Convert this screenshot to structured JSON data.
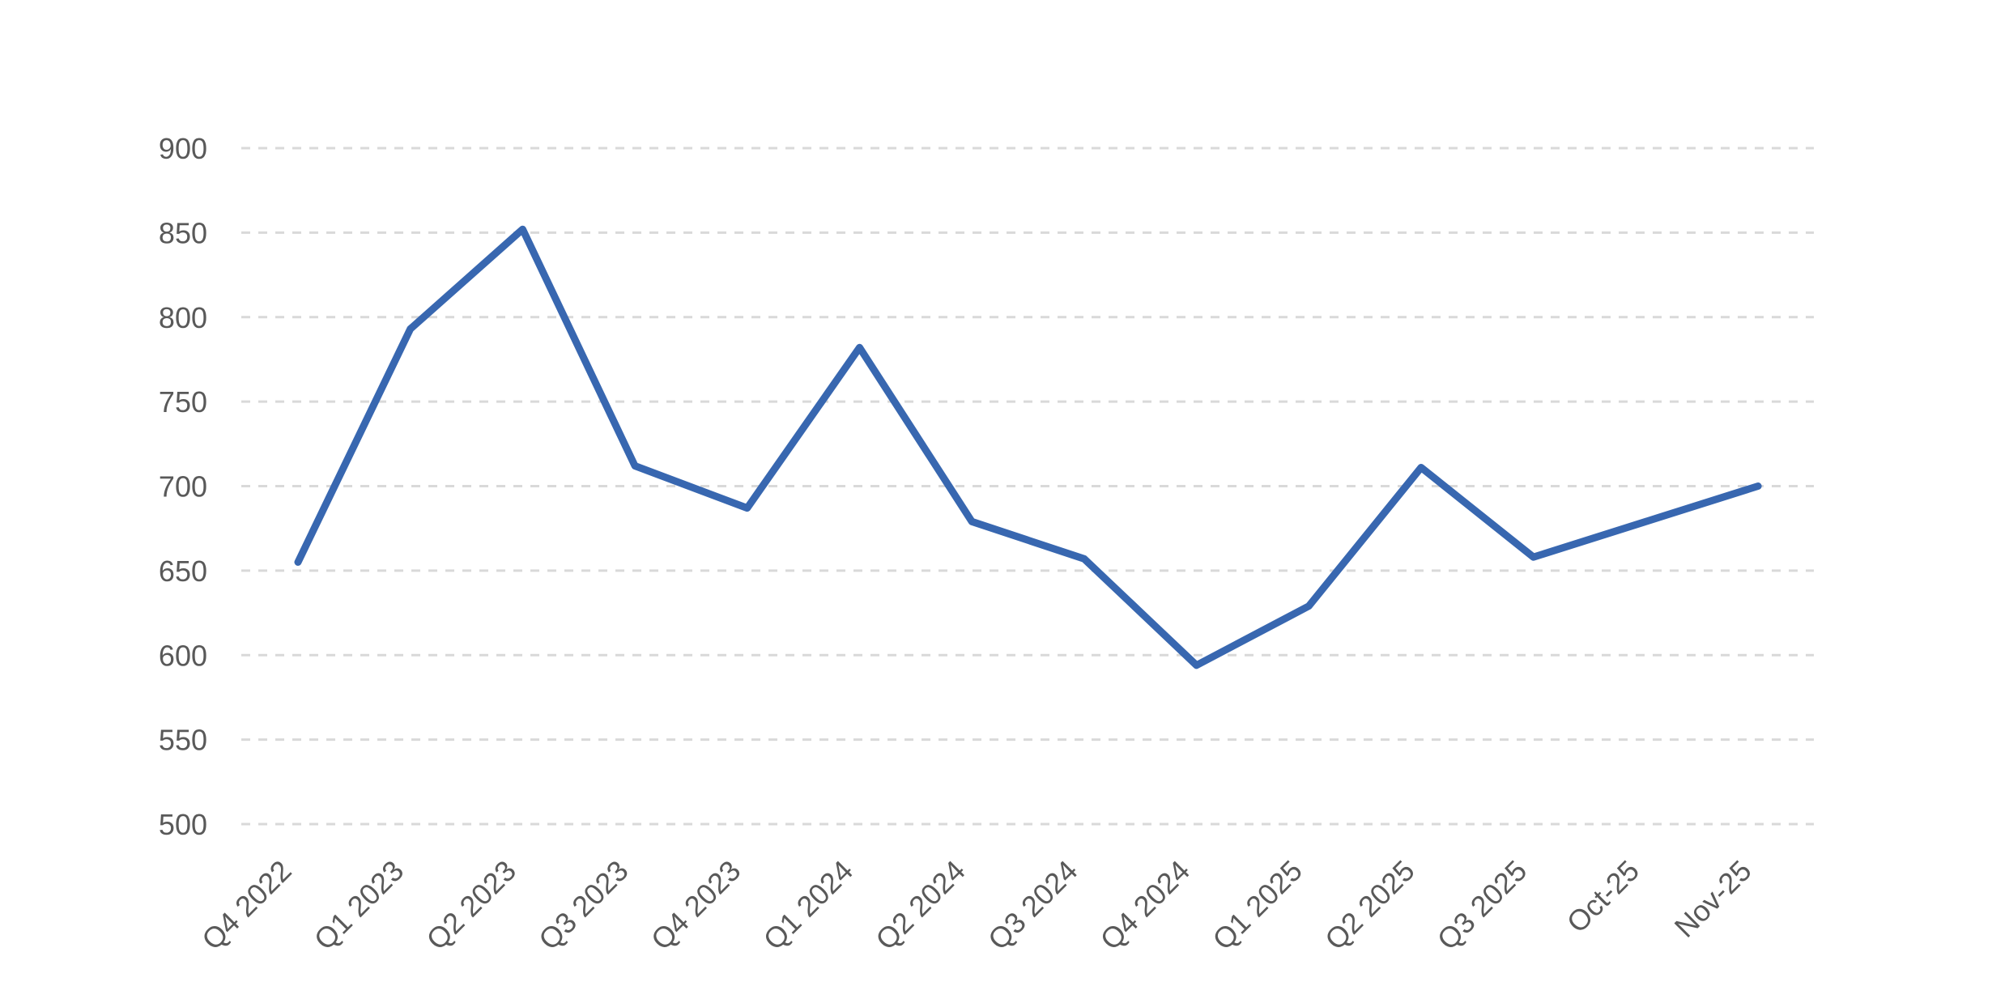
{
  "chart_data": {
    "type": "line",
    "title": "",
    "xlabel": "",
    "ylabel": "",
    "categories": [
      "Q4 2022",
      "Q1 2023",
      "Q2 2023",
      "Q3 2023",
      "Q4 2023",
      "Q1 2024",
      "Q2 2024",
      "Q3 2024",
      "Q4 2024",
      "Q1 2025",
      "Q2 2025",
      "Q3 2025",
      "Oct-25",
      "Nov-25"
    ],
    "series": [
      {
        "values": [
          655,
          793,
          852,
          712,
          687,
          782,
          679,
          657,
          594,
          629,
          711,
          658,
          679,
          700
        ]
      }
    ],
    "ylim": [
      500,
      900
    ],
    "yticks": [
      500,
      550,
      600,
      650,
      700,
      750,
      800,
      850,
      900
    ],
    "grid": true,
    "legend": "none",
    "colors": {
      "line": "#3867b0",
      "grid": "#d9d9d9",
      "tick_text": "#595959"
    }
  }
}
